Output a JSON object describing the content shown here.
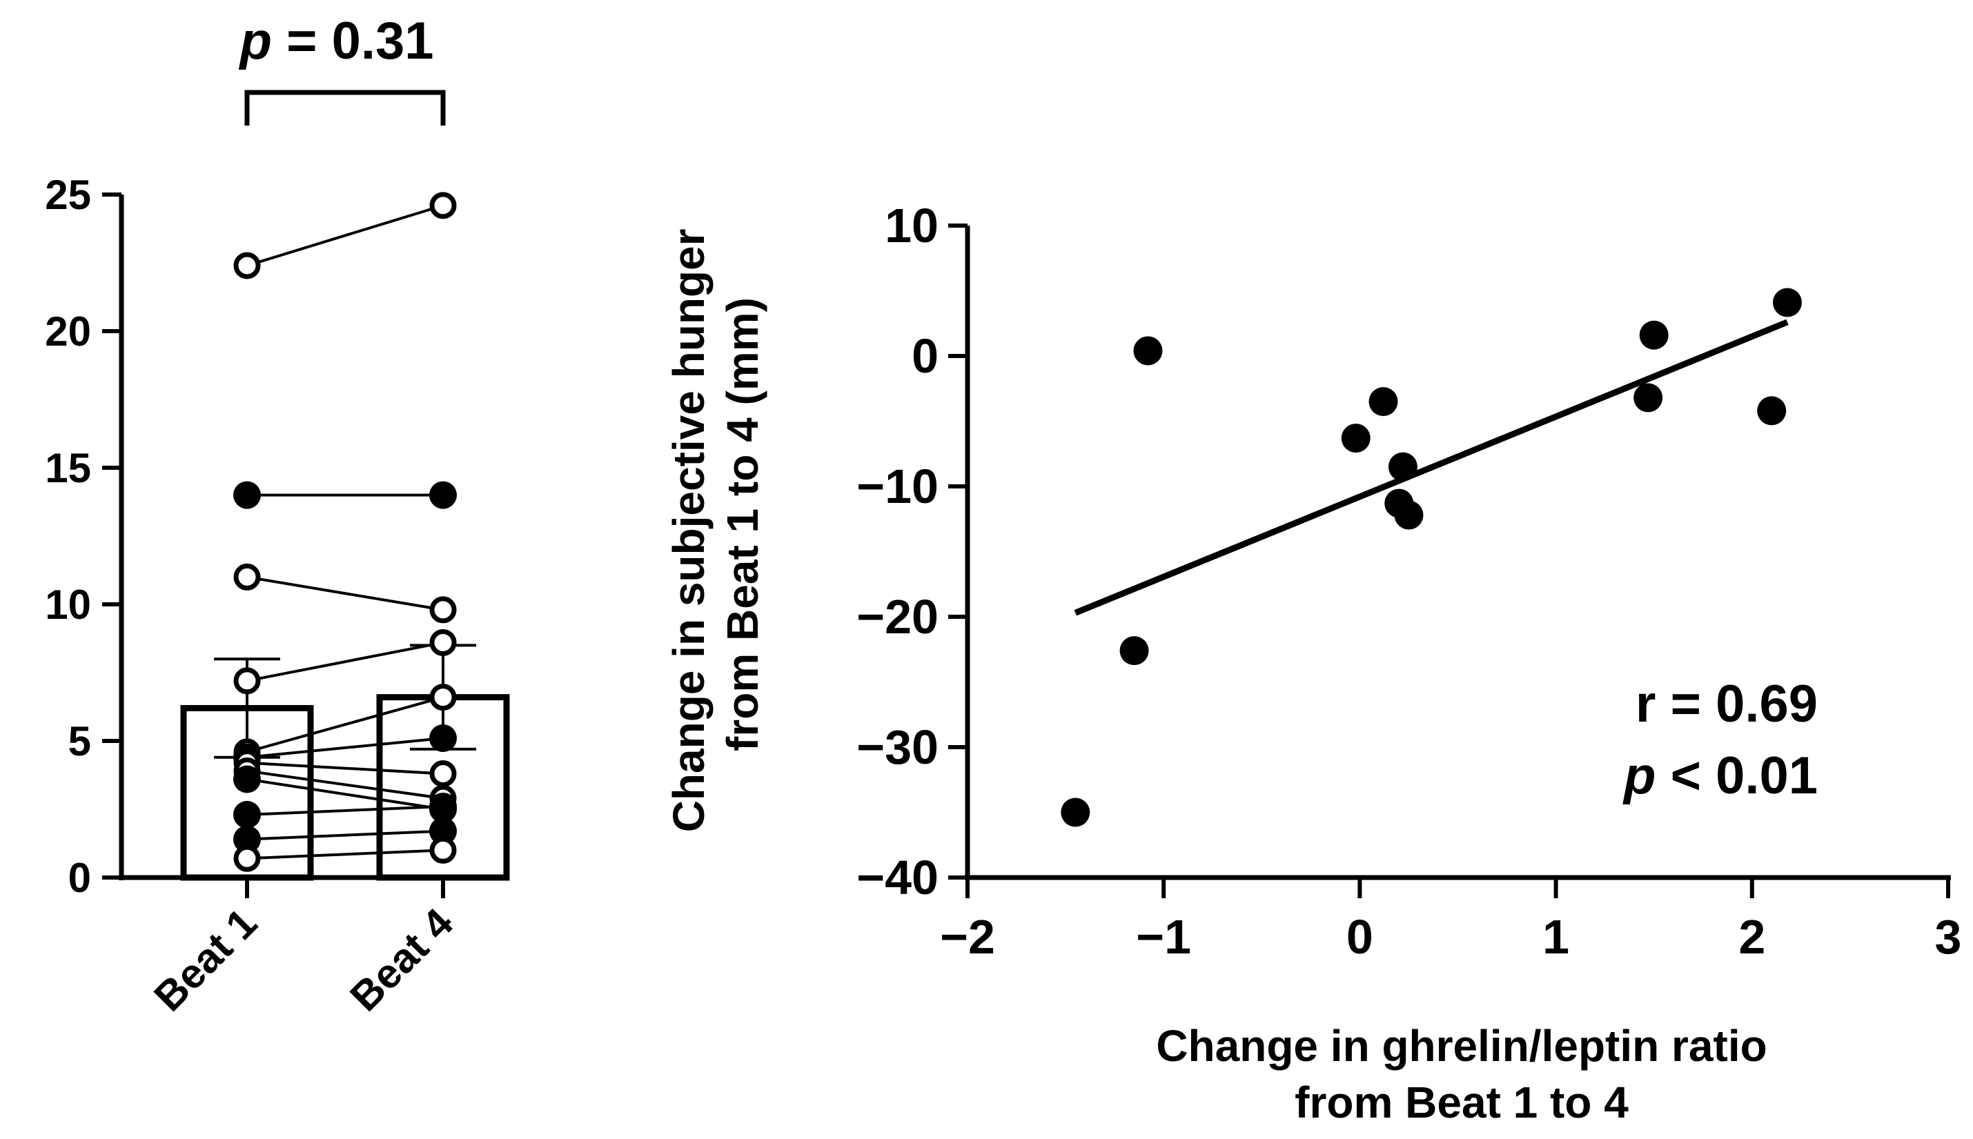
{
  "colors": {
    "ink": "#000000",
    "background": "#ffffff"
  },
  "chart_data": [
    {
      "type": "bar",
      "title": "",
      "xlabel": "",
      "ylabel": "",
      "categories": [
        "Beat 1",
        "Beat 4"
      ],
      "bar_means": [
        6.2,
        6.6
      ],
      "bar_errors": [
        1.8,
        1.9
      ],
      "ylim": [
        0,
        25
      ],
      "yticks": [
        "0",
        "5",
        "10",
        "15",
        "20",
        "25"
      ],
      "significance": {
        "p_symbol": "p",
        "rest": " = 0.31"
      },
      "paired_lines": [
        {
          "beat1": 22.4,
          "beat4": 24.6,
          "marker": "open"
        },
        {
          "beat1": 14.0,
          "beat4": 14.0,
          "marker": "filled"
        },
        {
          "beat1": 11.0,
          "beat4": 9.8,
          "marker": "open"
        },
        {
          "beat1": 7.2,
          "beat4": 8.6,
          "marker": "open"
        },
        {
          "beat1": 4.6,
          "beat4": 6.6,
          "marker": "open"
        },
        {
          "beat1": 4.4,
          "beat4": 5.1,
          "marker": "filled"
        },
        {
          "beat1": 4.2,
          "beat4": 3.8,
          "marker": "open"
        },
        {
          "beat1": 3.9,
          "beat4": 2.9,
          "marker": "open"
        },
        {
          "beat1": 3.6,
          "beat4": 2.5,
          "marker": "filled"
        },
        {
          "beat1": 2.3,
          "beat4": 2.6,
          "marker": "filled"
        },
        {
          "beat1": 1.4,
          "beat4": 1.7,
          "marker": "filled"
        },
        {
          "beat1": 0.7,
          "beat4": 1.0,
          "marker": "open"
        }
      ]
    },
    {
      "type": "scatter",
      "title": "",
      "xlabel_lines": [
        "Change in ghrelin/leptin ratio",
        "from Beat 1 to 4"
      ],
      "ylabel_lines": [
        "Change in subjective hunger",
        "from  Beat 1 to 4 (mm)"
      ],
      "xlim": [
        -2,
        3
      ],
      "ylim": [
        -40,
        10
      ],
      "xticks": [
        "−2",
        "−1",
        "0",
        "1",
        "2",
        "3"
      ],
      "yticks": [
        "−40",
        "−30",
        "−20",
        "−10",
        "0",
        "10"
      ],
      "points": [
        {
          "x": -1.45,
          "y": -35.0
        },
        {
          "x": -1.15,
          "y": -22.6
        },
        {
          "x": -1.08,
          "y": 0.4
        },
        {
          "x": -0.02,
          "y": -6.3
        },
        {
          "x": 0.12,
          "y": -3.5
        },
        {
          "x": 0.22,
          "y": -8.5
        },
        {
          "x": 0.2,
          "y": -11.3
        },
        {
          "x": 0.25,
          "y": -12.2
        },
        {
          "x": 1.47,
          "y": -3.2
        },
        {
          "x": 1.5,
          "y": 1.6
        },
        {
          "x": 2.1,
          "y": -4.2
        },
        {
          "x": 2.18,
          "y": 4.1
        }
      ],
      "regression": {
        "x1": -1.45,
        "y1": -19.7,
        "x2": 2.18,
        "y2": 2.6
      },
      "annotation": {
        "r_text": "r = 0.69",
        "p_symbol": "p",
        "p_rest": " < 0.01"
      }
    }
  ]
}
